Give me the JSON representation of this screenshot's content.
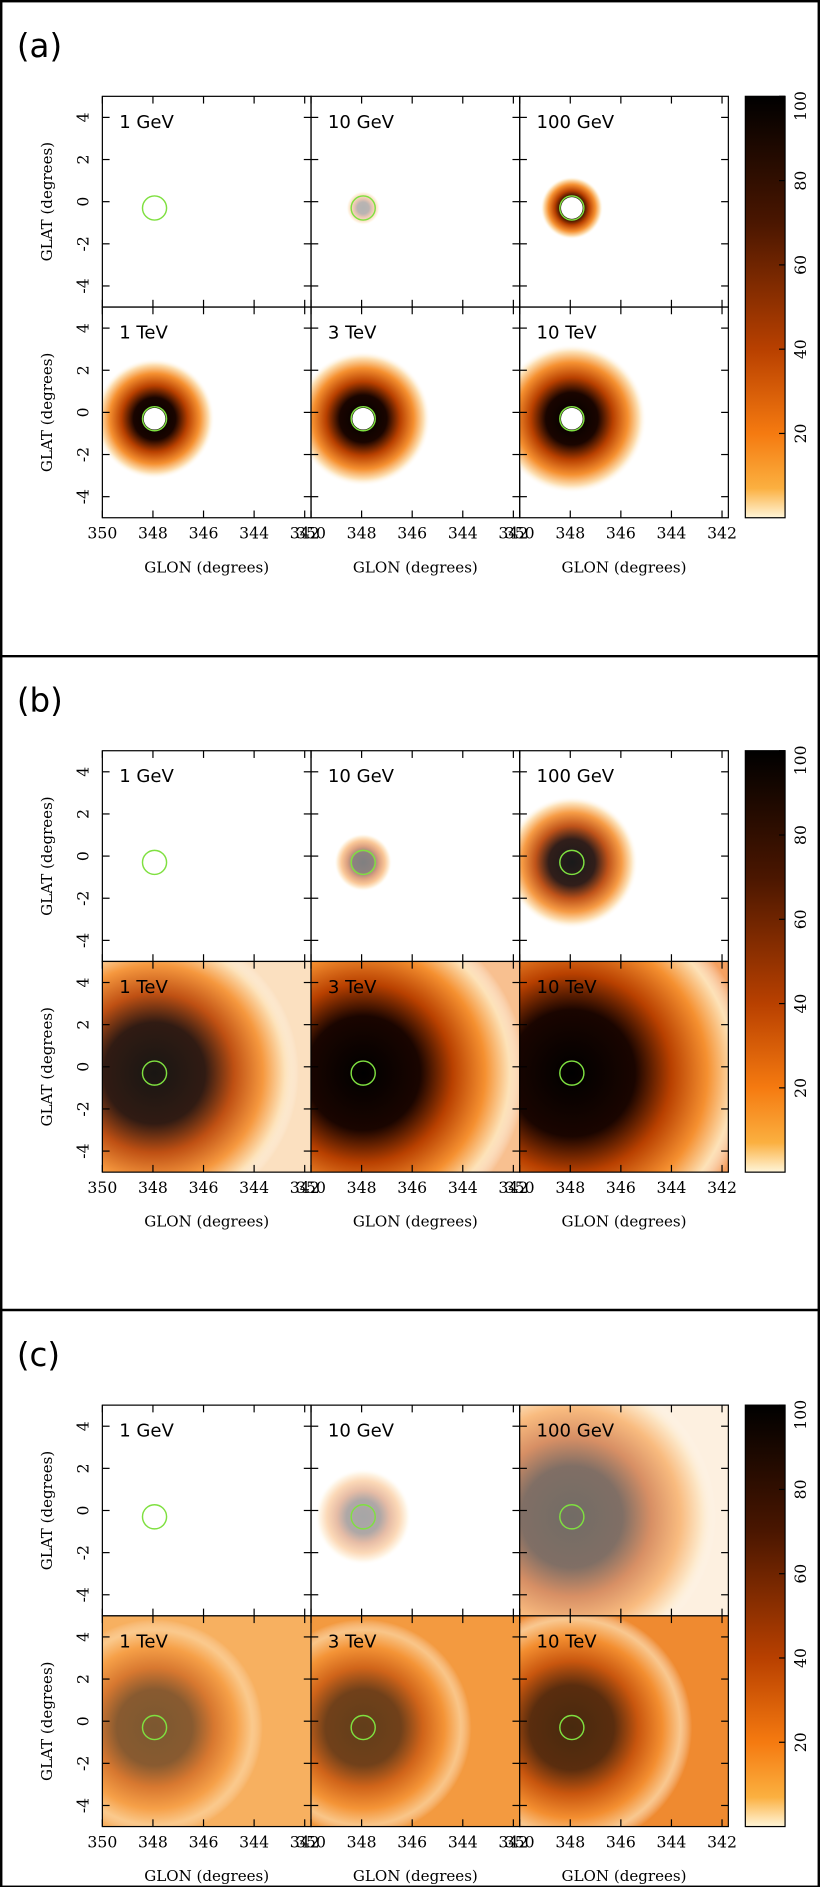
{
  "panels": [
    "(a)",
    "(b)",
    "(c)"
  ],
  "energies": [
    "1 GeV",
    "10 GeV",
    "100 GeV",
    "1 TeV",
    "3 TeV",
    "10 TeV"
  ],
  "axes": {
    "xlabel": "GLON (degrees)",
    "ylabel": "GLAT (degrees)",
    "xlim": [
      350,
      341.75
    ],
    "ylim": [
      -5,
      5
    ],
    "xticks": [
      350,
      348,
      346,
      344,
      342
    ],
    "yticks": [
      4,
      2,
      0,
      -2,
      -4
    ]
  },
  "colorbar": {
    "lim": [
      0,
      100
    ],
    "ticks": [
      20,
      40,
      60,
      80,
      100
    ]
  }
}
